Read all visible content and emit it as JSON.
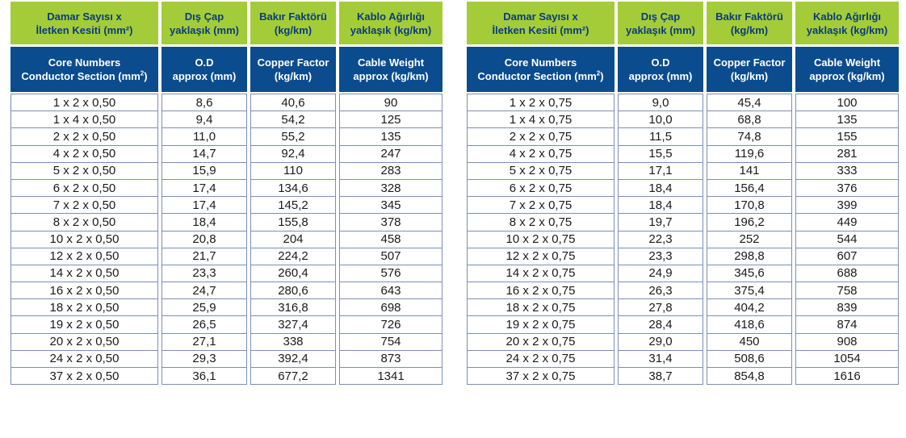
{
  "header": {
    "tr_core": [
      "Damar Sayısı x",
      "İletken Kesiti (mm²)"
    ],
    "tr_od": [
      "Dış Çap",
      "yaklaşık (mm)"
    ],
    "tr_cf": [
      "Bakır Faktörü",
      "(kg/km)"
    ],
    "tr_cw": [
      "Kablo Ağırlığı",
      "yaklaşık (kg/km)"
    ],
    "en_core": [
      "Core Numbers",
      "Conductor Section (mm",
      ")"
    ],
    "en_core_sup": "2",
    "en_od": [
      "O.D",
      "approx (mm)"
    ],
    "en_cf": [
      "Copper Factor",
      "(kg/km)"
    ],
    "en_cw": [
      "Cable Weight",
      "approx (kg/km)"
    ]
  },
  "tables": [
    {
      "rows": [
        [
          "1 x 2 x 0,50",
          "8,6",
          "40,6",
          "90"
        ],
        [
          "1 x 4 x 0,50",
          "9,4",
          "54,2",
          "125"
        ],
        [
          "2 x 2 x 0,50",
          "11,0",
          "55,2",
          "135"
        ],
        [
          "4 x 2 x 0,50",
          "14,7",
          "92,4",
          "247"
        ],
        [
          "5 x 2 x 0,50",
          "15,9",
          "110",
          "283"
        ],
        [
          "6 x 2 x 0,50",
          "17,4",
          "134,6",
          "328"
        ],
        [
          "7 x 2 x 0,50",
          "17,4",
          "145,2",
          "345"
        ],
        [
          "8 x 2 x 0,50",
          "18,4",
          "155,8",
          "378"
        ],
        [
          "10 x 2 x 0,50",
          "20,8",
          "204",
          "458"
        ],
        [
          "12 x 2 x 0,50",
          "21,7",
          "224,2",
          "507"
        ],
        [
          "14 x 2 x 0,50",
          "23,3",
          "260,4",
          "576"
        ],
        [
          "16 x 2 x 0,50",
          "24,7",
          "280,6",
          "643"
        ],
        [
          "18 x 2 x 0,50",
          "25,9",
          "316,8",
          "698"
        ],
        [
          "19 x 2 x 0,50",
          "26,5",
          "327,4",
          "726"
        ],
        [
          "20 x 2 x 0,50",
          "27,1",
          "338",
          "754"
        ],
        [
          "24 x 2 x 0,50",
          "29,3",
          "392,4",
          "873"
        ],
        [
          "37 x 2 x 0,50",
          "36,1",
          "677,2",
          "1341"
        ]
      ]
    },
    {
      "rows": [
        [
          "1 x 2 x 0,75",
          "9,0",
          "45,4",
          "100"
        ],
        [
          "1 x 4 x 0,75",
          "10,0",
          "68,8",
          "135"
        ],
        [
          "2 x 2 x 0,75",
          "11,5",
          "74,8",
          "155"
        ],
        [
          "4 x 2 x 0,75",
          "15,5",
          "119,6",
          "281"
        ],
        [
          "5 x 2 x 0,75",
          "17,1",
          "141",
          "333"
        ],
        [
          "6 x 2 x 0,75",
          "18,4",
          "156,4",
          "376"
        ],
        [
          "7 x 2 x 0,75",
          "18,4",
          "170,8",
          "399"
        ],
        [
          "8 x 2 x 0,75",
          "19,7",
          "196,2",
          "449"
        ],
        [
          "10 x 2 x 0,75",
          "22,3",
          "252",
          "544"
        ],
        [
          "12 x 2 x 0,75",
          "23,3",
          "298,8",
          "607"
        ],
        [
          "14 x 2 x 0,75",
          "24,9",
          "345,6",
          "688"
        ],
        [
          "16 x 2 x 0,75",
          "26,3",
          "375,4",
          "758"
        ],
        [
          "18 x 2 x 0,75",
          "27,8",
          "404,2",
          "839"
        ],
        [
          "19 x 2 x 0,75",
          "28,4",
          "418,6",
          "874"
        ],
        [
          "20 x 2 x 0,75",
          "29,0",
          "450",
          "908"
        ],
        [
          "24 x 2 x 0,75",
          "31,4",
          "508,6",
          "1054"
        ],
        [
          "37 x 2 x 0,75",
          "38,7",
          "854,8",
          "1616"
        ]
      ]
    }
  ],
  "colors": {
    "header_green": "#a4cc39",
    "header_blue": "#0b4c8e",
    "header_text_blue": "#0a3b80"
  }
}
